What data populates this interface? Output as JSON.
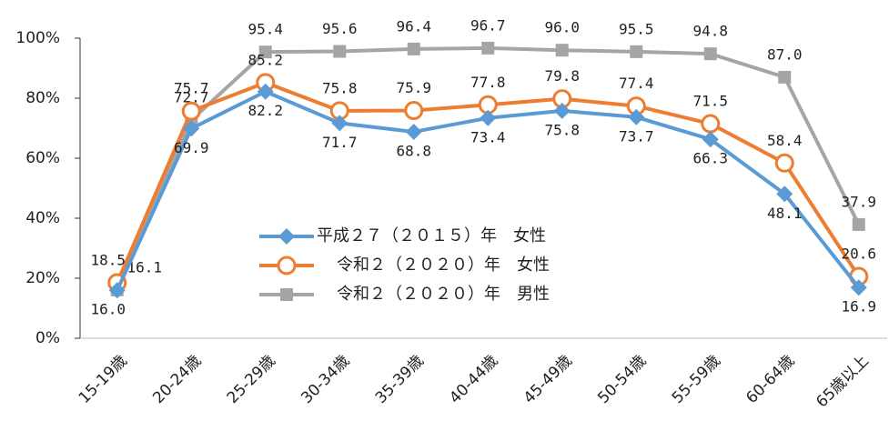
{
  "chart_data": {
    "type": "line",
    "categories": [
      "15-19歳",
      "20-24歳",
      "25-29歳",
      "30-34歳",
      "35-39歳",
      "40-44歳",
      "45-49歳",
      "50-54歳",
      "55-59歳",
      "60-64歳",
      "65歳以上"
    ],
    "series": [
      {
        "name": "平成２７（２０１５）年　女性",
        "color": "#5b9bd5",
        "marker": "diamond",
        "values": [
          16.0,
          69.9,
          82.2,
          71.7,
          68.8,
          73.4,
          75.8,
          73.7,
          66.3,
          48.1,
          16.9
        ],
        "value_labels": [
          "16.0",
          "69.9",
          "82.2",
          "71.7",
          "68.8",
          "73.4",
          "75.8",
          "73.7",
          "66.3",
          "48.1",
          "16.9"
        ]
      },
      {
        "name": "令和２（２０２０）年　女性",
        "color": "#ed7d31",
        "marker": "circle",
        "values": [
          18.5,
          75.7,
          85.2,
          75.8,
          75.9,
          77.8,
          79.8,
          77.4,
          71.5,
          58.4,
          20.6
        ],
        "value_labels": [
          "18.5",
          "75.7",
          "85.2",
          "75.8",
          "75.9",
          "77.8",
          "79.8",
          "77.4",
          "71.5",
          "58.4",
          "20.6"
        ]
      },
      {
        "name": "令和２（２０２０）年　男性",
        "color": "#a5a5a5",
        "marker": "square",
        "values": [
          16.1,
          72.7,
          95.4,
          95.6,
          96.4,
          96.7,
          96.0,
          95.5,
          94.8,
          87.0,
          37.9
        ],
        "value_labels": [
          "16.1",
          "72.7",
          "95.4",
          "95.6",
          "96.4",
          "96.7",
          "96.0",
          "95.5",
          "94.8",
          "87.0",
          "37.9"
        ]
      }
    ],
    "ylim": [
      0,
      100
    ],
    "yticks": [
      {
        "value": 0,
        "label": "0%"
      },
      {
        "value": 20,
        "label": "20%"
      },
      {
        "value": 40,
        "label": "40%"
      },
      {
        "value": 60,
        "label": "60%"
      },
      {
        "value": 80,
        "label": "80%"
      },
      {
        "value": 100,
        "label": "100%"
      }
    ],
    "grid": false
  }
}
